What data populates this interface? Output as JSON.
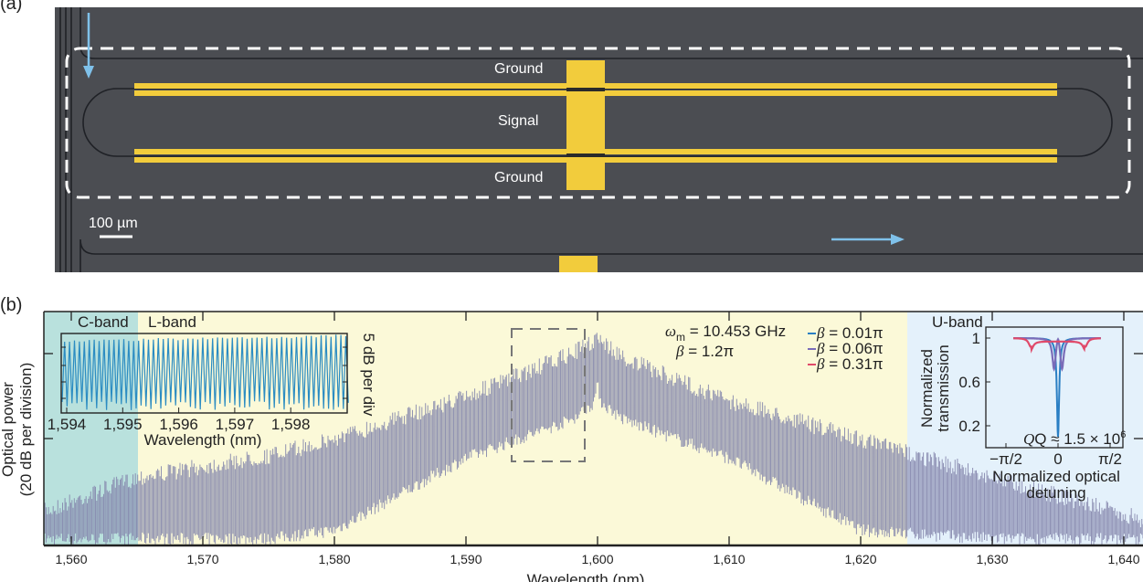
{
  "panel_a": {
    "label": "(a)",
    "electrode_labels": [
      "Ground",
      "Signal",
      "Ground"
    ],
    "scale_bar": "100 µm",
    "colors": {
      "background": "#4b4d52",
      "electrode": "#f2cc3c",
      "arrow": "#7fc1ea",
      "dashed_box": "#ffffff"
    }
  },
  "panel_b": {
    "label": "(b)",
    "band_labels": {
      "c": "C-band",
      "l": "L-band",
      "u": "U-band"
    },
    "ylabel_line1": "Optical power",
    "ylabel_line2": "(20 dB per division)",
    "xlabel": "Wavelength (nm)",
    "annot": {
      "omega": "ω",
      "omega_sub": "m",
      "omega_val": " = 10.453 GHz",
      "beta": "β",
      "beta_val": " = 1.2π"
    },
    "colors": {
      "c_band": "#b9e1dd",
      "l_band": "#fbf9d8",
      "u_band": "#e4f1fb",
      "comb": "#8587ad"
    }
  },
  "chart_data": [
    {
      "type": "line",
      "title": "",
      "xlabel": "Wavelength (nm)",
      "ylabel": "Optical power (20 dB per division)",
      "xlim": [
        1558,
        1641.5
      ],
      "xticks": [
        1560,
        1570,
        1580,
        1590,
        1600,
        1610,
        1620,
        1630,
        1640
      ],
      "xtick_labels": [
        "1,560",
        "1,570",
        "1,580",
        "1,590",
        "1,600",
        "1,610",
        "1,620",
        "1,630",
        "1,640"
      ],
      "bands": [
        {
          "name": "C-band",
          "range": [
            1558,
            1565.1
          ]
        },
        {
          "name": "L-band",
          "range": [
            1565.1,
            1623.5
          ]
        },
        {
          "name": "U-band",
          "range": [
            1623.5,
            1641.5
          ]
        }
      ],
      "comb_center_nm": 1600,
      "comb_spacing_ghz": 10.453,
      "envelope_relative_db": {
        "wavelength": [
          1558,
          1565,
          1575,
          1580,
          1590,
          1598,
          1599.7,
          1600,
          1600.3,
          1602,
          1610,
          1620,
          1630,
          1641.5
        ],
        "upper": [
          -42,
          -34,
          -29,
          -25,
          -15,
          -5,
          -2,
          0,
          -2,
          -6,
          -16,
          -25,
          -34,
          -44
        ],
        "lower": [
          -52,
          -52,
          -52,
          -50,
          -33,
          -24,
          -20,
          -16,
          -20,
          -24,
          -33,
          -50,
          -52,
          -52
        ]
      },
      "annotations": [
        "ω_m = 10.453 GHz",
        "β = 1.2π"
      ]
    },
    {
      "type": "line",
      "xlabel": "Wavelength (nm)",
      "ylabel": "5 dB per div",
      "xlim": [
        1593.9,
        1599.0
      ],
      "xticks": [
        1594,
        1595,
        1596,
        1597,
        1598
      ],
      "xtick_labels": [
        "1,594",
        "1,595",
        "1,596",
        "1,597",
        "1,598"
      ],
      "color": "#2b8cc2"
    },
    {
      "type": "line",
      "xlabel_line1": "Normalized optical",
      "xlabel_line2": "detuning",
      "ylabel_line1": "Normalized",
      "ylabel_line2": "transmission",
      "xticks": [
        "−π/2",
        "0",
        "π/2"
      ],
      "yticks": [
        1,
        0.6,
        0.2
      ],
      "ytick_labels": [
        "1",
        "0.6",
        "0.2"
      ],
      "ylim": [
        0,
        1.1
      ],
      "annotation": {
        "text": "Q ≈ 1.5 × 10",
        "sup": "6"
      },
      "series": [
        {
          "name": "β = 0.01π",
          "beta_label": "β",
          "value_label": " = 0.01π",
          "color": "#2a7fc4",
          "min_transmission": 0.1
        },
        {
          "name": "β = 0.06π",
          "beta_label": "β",
          "value_label": " = 0.06π",
          "color": "#7a6cb8",
          "min_transmission": 0.72
        },
        {
          "name": "β = 0.31π",
          "beta_label": "β",
          "value_label": " = 0.31π",
          "color": "#e04a6a",
          "min_transmission": 0.88
        }
      ]
    }
  ]
}
